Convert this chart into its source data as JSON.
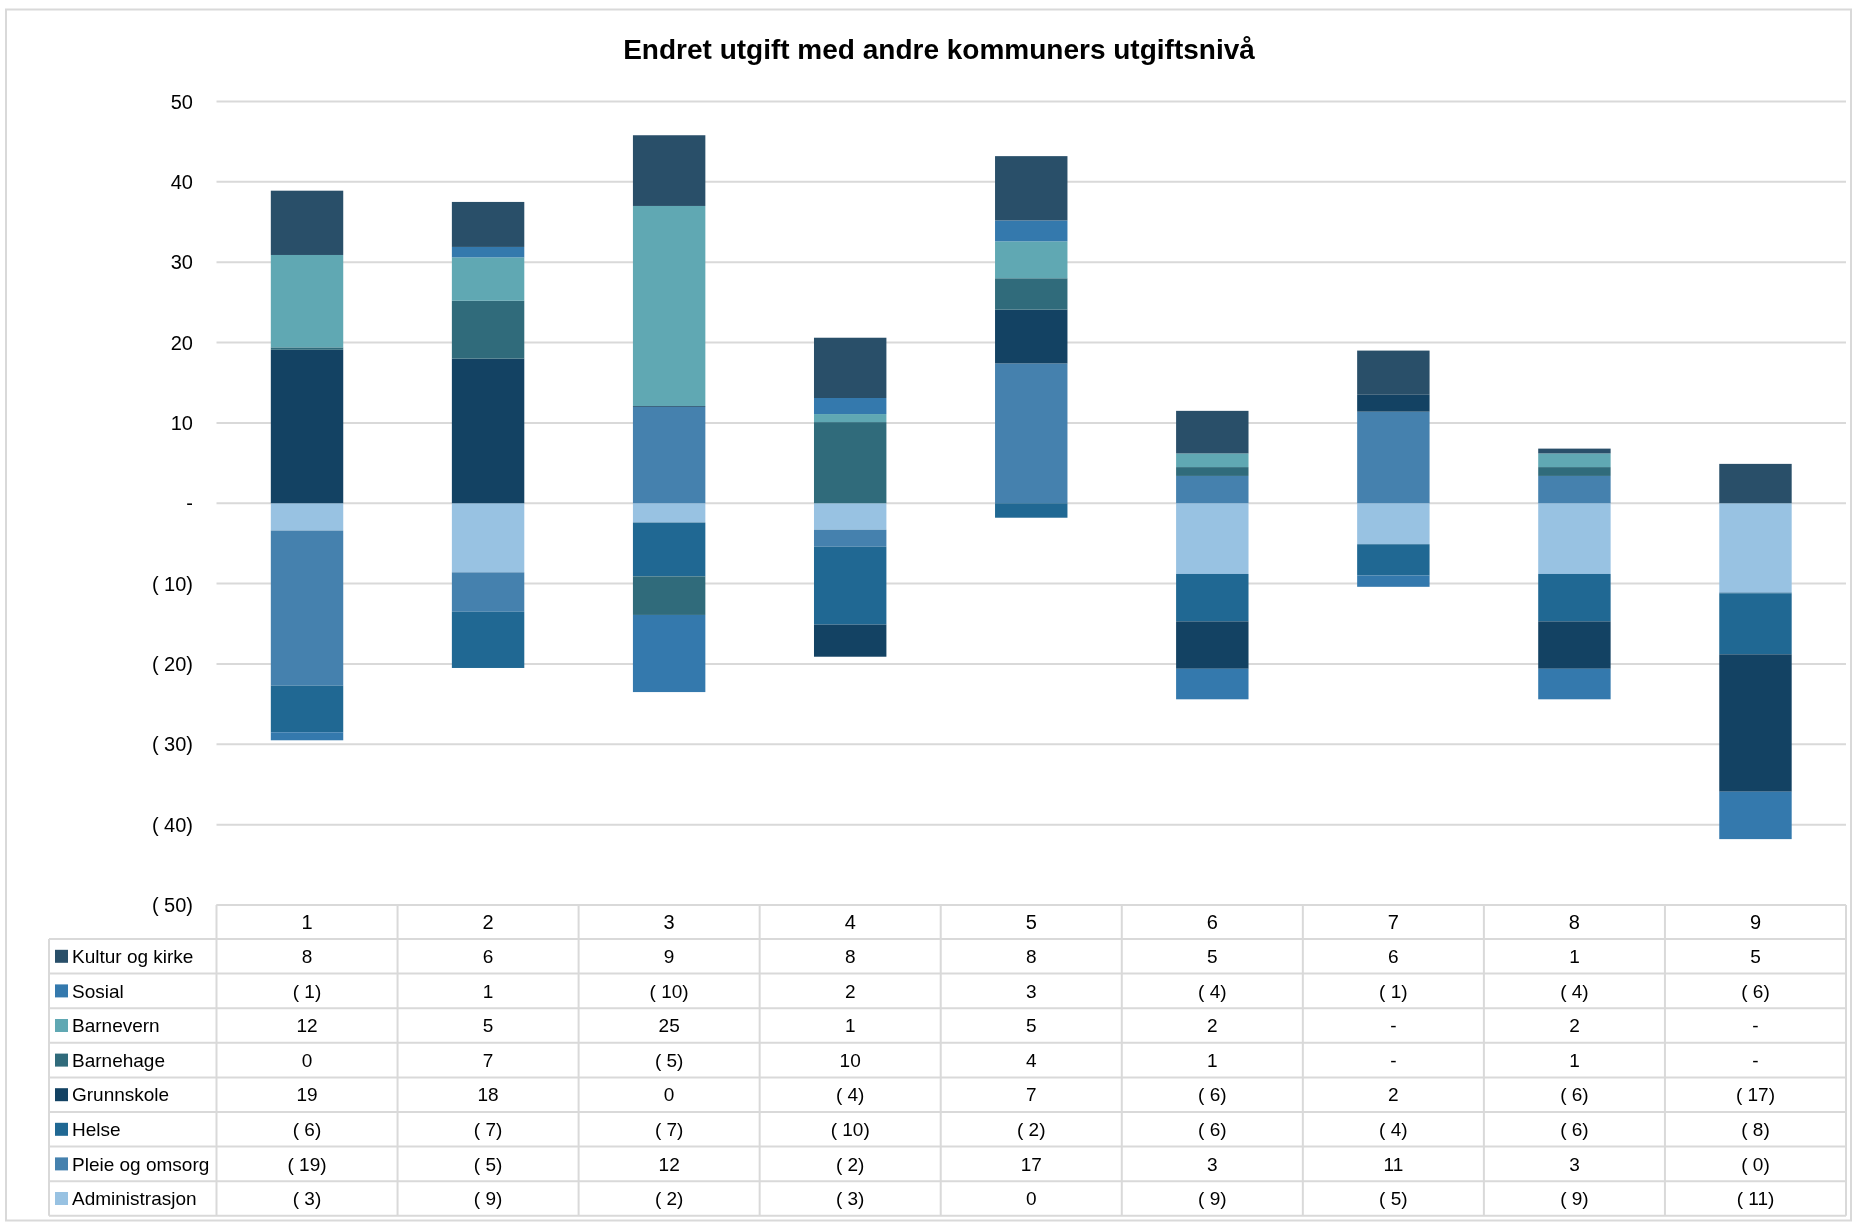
{
  "chart_data": {
    "type": "bar",
    "title": "Endret utgift med andre kommuners utgiftsnivå",
    "stacked": true,
    "grid": "y",
    "legend": "bottom",
    "categories": [
      "1",
      "2",
      "3",
      "4",
      "5",
      "6",
      "7",
      "8",
      "9"
    ],
    "ylim": [
      -50,
      50
    ],
    "yticks": [
      {
        "value": -50,
        "label": "( 50)"
      },
      {
        "value": -40,
        "label": "( 40)"
      },
      {
        "value": -30,
        "label": "( 30)"
      },
      {
        "value": -20,
        "label": "( 20)"
      },
      {
        "value": -10,
        "label": "( 10)"
      },
      {
        "value": 0,
        "label": "-"
      },
      10,
      20,
      30,
      40,
      50
    ],
    "series": [
      {
        "name": "Administrasjon",
        "color": "#98c2e2",
        "values": [
          -3.4,
          -8.6,
          -2.4,
          -3.3,
          0,
          -8.8,
          -5.1,
          -8.8,
          -11.1
        ],
        "value_labels": [
          "( 3)",
          "( 9)",
          "( 2)",
          "( 3)",
          "0",
          "( 9)",
          "( 5)",
          "( 9)",
          "( 11)"
        ]
      },
      {
        "name": "Pleie og omsorg",
        "color": "#4581ae",
        "values": [
          -19.3,
          -4.9,
          12,
          -2.1,
          17.4,
          3.4,
          11.4,
          3.4,
          -0.1
        ],
        "value_labels": [
          "( 19)",
          "( 5)",
          "12",
          "( 2)",
          "17",
          "3",
          "11",
          "3",
          "( 0)"
        ]
      },
      {
        "name": "Helse",
        "color": "#206893",
        "values": [
          -5.8,
          -7,
          -6.7,
          -9.7,
          -1.8,
          -5.9,
          -3.9,
          -5.9,
          -7.6
        ],
        "value_labels": [
          "( 6)",
          "( 7)",
          "( 7)",
          "( 10)",
          "( 2)",
          "( 6)",
          "( 4)",
          "( 6)",
          "( 8)"
        ]
      },
      {
        "name": "Grunnskole",
        "color": "#134263",
        "values": [
          19.1,
          18,
          0.1,
          -4,
          6.7,
          -5.9,
          2.1,
          -5.9,
          -17.1
        ],
        "value_labels": [
          "19",
          "18",
          "0",
          "( 4)",
          "7",
          "( 6)",
          "2",
          "( 6)",
          "( 17)"
        ]
      },
      {
        "name": "Barnehage",
        "color": "#306b7b",
        "values": [
          0.3,
          7.2,
          -4.8,
          10.1,
          3.9,
          1.1,
          0,
          1.1,
          0
        ],
        "value_labels": [
          "0",
          "7",
          "( 5)",
          "10",
          "4",
          "1",
          "-",
          "1",
          "-"
        ]
      },
      {
        "name": "Barnevern",
        "color": "#60a8b3",
        "values": [
          11.5,
          5.4,
          24.9,
          1,
          4.6,
          1.7,
          0,
          1.7,
          0
        ],
        "value_labels": [
          "12",
          "5",
          "25",
          "1",
          "5",
          "2",
          "-",
          "2",
          "-"
        ]
      },
      {
        "name": "Sosial",
        "color": "#3479ad",
        "values": [
          -1,
          1.3,
          -9.6,
          2,
          2.6,
          -3.8,
          -1.4,
          -3.8,
          -5.9
        ],
        "value_labels": [
          "( 1)",
          "1",
          "( 10)",
          "2",
          "3",
          "( 4)",
          "( 1)",
          "( 4)",
          "( 6)"
        ]
      },
      {
        "name": "Kultur og kirke",
        "color": "#294f69",
        "values": [
          8,
          5.6,
          8.8,
          7.5,
          8,
          5.3,
          5.5,
          0.6,
          4.9
        ],
        "value_labels": [
          "8",
          "6",
          "9",
          "8",
          "8",
          "5",
          "6",
          "1",
          "5"
        ]
      }
    ]
  }
}
